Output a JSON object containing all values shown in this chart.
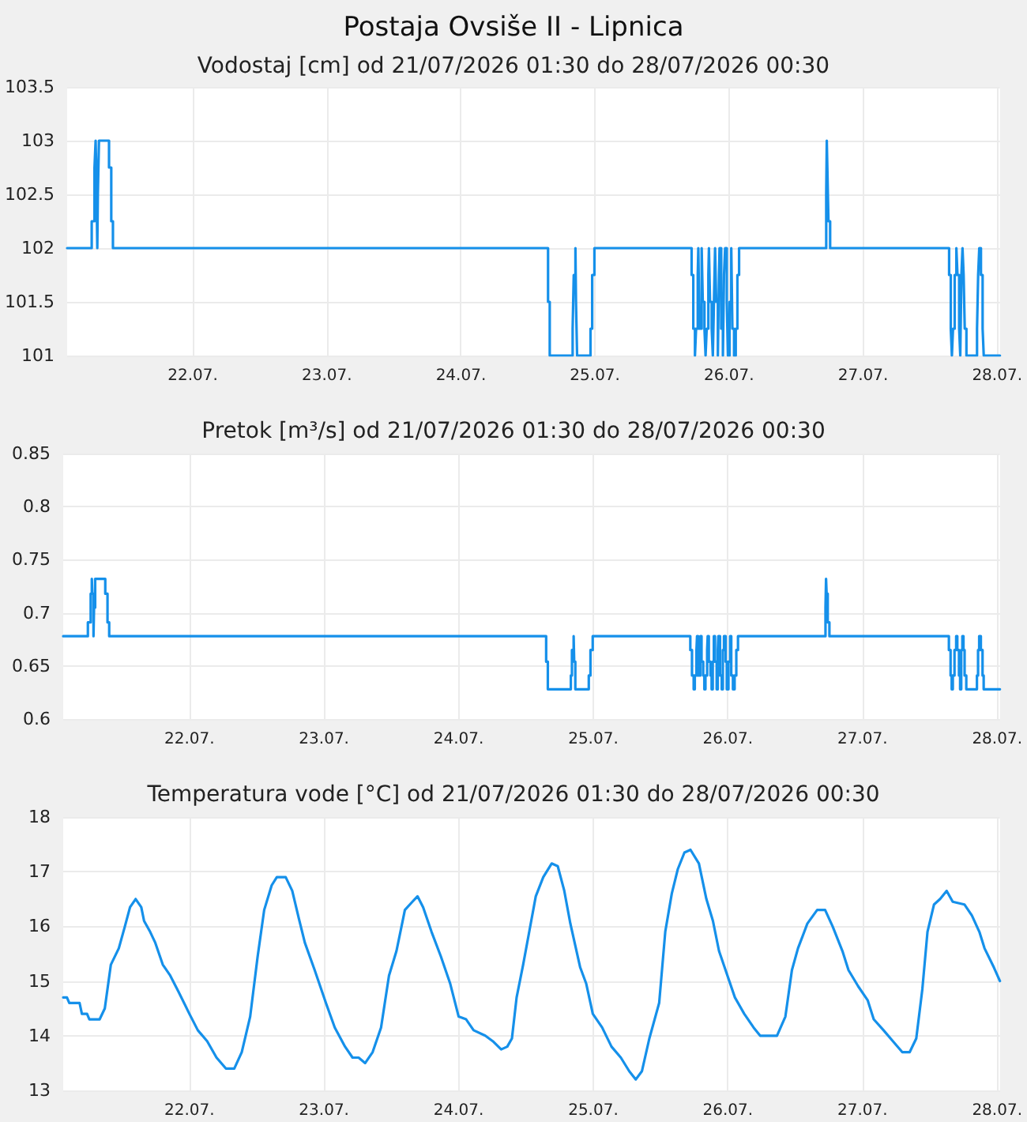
{
  "chart_data": [
    {
      "type": "step",
      "title": "Postaja Ovsiše II - Lipnica",
      "subtitle": "Vodostaj [cm] od 21/07/2026 01:30 do 28/07/2026 00:30",
      "x": [
        "2026-07-21T01:30",
        "2026-07-21T05:54",
        "2026-07-21T06:24",
        "2026-07-21T06:36",
        "2026-07-21T06:42",
        "2026-07-21T06:54",
        "2026-07-21T07:00",
        "2026-07-21T07:12",
        "2026-07-21T09:00",
        "2026-07-21T09:24",
        "2026-07-21T09:42",
        "2026-07-24T15:36",
        "2026-07-24T15:54",
        "2026-07-24T20:00",
        "2026-07-24T20:12",
        "2026-07-24T20:30",
        "2026-07-24T20:36",
        "2026-07-24T20:48",
        "2026-07-24T23:12",
        "2026-07-24T23:30",
        "2026-07-24T23:54",
        "2026-07-25T17:18",
        "2026-07-25T17:36",
        "2026-07-25T17:54",
        "2026-07-25T18:06",
        "2026-07-25T18:24",
        "2026-07-25T18:30",
        "2026-07-25T18:42",
        "2026-07-25T19:06",
        "2026-07-25T19:18",
        "2026-07-25T19:36",
        "2026-07-25T19:48",
        "2026-07-25T20:00",
        "2026-07-25T20:18",
        "2026-07-25T20:24",
        "2026-07-25T20:36",
        "2026-07-25T20:54",
        "2026-07-25T21:06",
        "2026-07-25T21:18",
        "2026-07-25T21:30",
        "2026-07-25T21:42",
        "2026-07-25T22:00",
        "2026-07-25T22:12",
        "2026-07-25T22:18",
        "2026-07-25T22:36",
        "2026-07-25T22:54",
        "2026-07-25T23:06",
        "2026-07-25T23:18",
        "2026-07-25T23:36",
        "2026-07-25T23:48",
        "2026-07-26T00:06",
        "2026-07-26T00:24",
        "2026-07-26T00:36",
        "2026-07-26T00:54",
        "2026-07-26T01:12",
        "2026-07-26T01:30",
        "2026-07-26T01:48",
        "2026-07-26T17:24",
        "2026-07-26T17:30",
        "2026-07-26T17:36",
        "2026-07-26T17:48",
        "2026-07-26T18:06",
        "2026-07-27T15:24",
        "2026-07-27T15:42",
        "2026-07-27T15:54",
        "2026-07-27T16:06",
        "2026-07-27T16:24",
        "2026-07-27T16:42",
        "2026-07-27T16:54",
        "2026-07-27T17:12",
        "2026-07-27T17:24",
        "2026-07-27T17:36",
        "2026-07-27T17:48",
        "2026-07-27T18:00",
        "2026-07-27T18:12",
        "2026-07-27T18:30",
        "2026-07-27T20:24",
        "2026-07-27T20:36",
        "2026-07-27T20:48",
        "2026-07-27T21:06",
        "2026-07-27T21:24",
        "2026-07-27T21:36",
        "2026-07-28T00:30"
      ],
      "series": [
        {
          "color": "#1590ea",
          "values": [
            102,
            102.25,
            102.75,
            103,
            102.75,
            102,
            102.5,
            103,
            102.75,
            102.25,
            102,
            101.5,
            101,
            101.25,
            101.75,
            102,
            101.5,
            101,
            101.25,
            101.75,
            102,
            101.75,
            101.25,
            101,
            101.25,
            101.75,
            102,
            101.25,
            102,
            101.5,
            101.25,
            101,
            101.25,
            101.75,
            102,
            101.5,
            101.25,
            101,
            101.5,
            102,
            101.5,
            101,
            101.75,
            102,
            101.25,
            101,
            101.75,
            102,
            101.5,
            101,
            101.5,
            102,
            101.25,
            101,
            101.25,
            101.75,
            102,
            102.5,
            103,
            102.75,
            102.25,
            102,
            101.75,
            101.25,
            101,
            101.25,
            101.75,
            102,
            101.75,
            101.25,
            101,
            101.75,
            102,
            101.75,
            101.25,
            101,
            101.25,
            101.75,
            102,
            101.75,
            101.25,
            101,
            101
          ]
        }
      ],
      "xlim": [
        "2026-07-21T01:30",
        "2026-07-28T00:30"
      ],
      "xticks": [
        {
          "value": "2026-07-22T00:00",
          "label": "22.07."
        },
        {
          "value": "2026-07-23T00:00",
          "label": "23.07."
        },
        {
          "value": "2026-07-24T00:00",
          "label": "24.07."
        },
        {
          "value": "2026-07-25T00:00",
          "label": "25.07."
        },
        {
          "value": "2026-07-26T00:00",
          "label": "26.07."
        },
        {
          "value": "2026-07-27T00:00",
          "label": "27.07."
        },
        {
          "value": "2026-07-28T00:00",
          "label": "28.07."
        }
      ],
      "ylim": [
        101,
        103.5
      ],
      "yticks": [
        101,
        101.5,
        102,
        102.5,
        103,
        103.5
      ],
      "grid": true
    },
    {
      "type": "step",
      "title": "Pretok [m³/s] od 21/07/2026 01:30 do 28/07/2026 00:30",
      "x": [
        "2026-07-21T01:30",
        "2026-07-21T05:54",
        "2026-07-21T06:24",
        "2026-07-21T06:36",
        "2026-07-21T06:42",
        "2026-07-21T06:54",
        "2026-07-21T07:00",
        "2026-07-21T07:12",
        "2026-07-21T09:00",
        "2026-07-21T09:24",
        "2026-07-21T09:42",
        "2026-07-24T15:36",
        "2026-07-24T15:54",
        "2026-07-24T20:00",
        "2026-07-24T20:12",
        "2026-07-24T20:30",
        "2026-07-24T20:36",
        "2026-07-24T20:48",
        "2026-07-24T23:12",
        "2026-07-24T23:30",
        "2026-07-24T23:54",
        "2026-07-25T17:18",
        "2026-07-25T17:36",
        "2026-07-25T17:54",
        "2026-07-25T18:06",
        "2026-07-25T18:24",
        "2026-07-25T18:30",
        "2026-07-25T18:42",
        "2026-07-25T19:06",
        "2026-07-25T19:18",
        "2026-07-25T19:36",
        "2026-07-25T19:48",
        "2026-07-25T20:00",
        "2026-07-25T20:18",
        "2026-07-25T20:24",
        "2026-07-25T20:36",
        "2026-07-25T20:54",
        "2026-07-25T21:06",
        "2026-07-25T21:18",
        "2026-07-25T21:30",
        "2026-07-25T21:42",
        "2026-07-25T22:00",
        "2026-07-25T22:12",
        "2026-07-25T22:18",
        "2026-07-25T22:36",
        "2026-07-25T22:54",
        "2026-07-25T23:06",
        "2026-07-25T23:18",
        "2026-07-25T23:36",
        "2026-07-25T23:48",
        "2026-07-26T00:06",
        "2026-07-26T00:24",
        "2026-07-26T00:36",
        "2026-07-26T00:54",
        "2026-07-26T01:12",
        "2026-07-26T01:30",
        "2026-07-26T01:48",
        "2026-07-26T17:24",
        "2026-07-26T17:30",
        "2026-07-26T17:36",
        "2026-07-26T17:48",
        "2026-07-26T18:06",
        "2026-07-27T15:24",
        "2026-07-27T15:42",
        "2026-07-27T15:54",
        "2026-07-27T16:06",
        "2026-07-27T16:24",
        "2026-07-27T16:42",
        "2026-07-27T16:54",
        "2026-07-27T17:12",
        "2026-07-27T17:24",
        "2026-07-27T17:36",
        "2026-07-27T17:48",
        "2026-07-27T18:00",
        "2026-07-27T18:12",
        "2026-07-27T18:30",
        "2026-07-27T20:24",
        "2026-07-27T20:36",
        "2026-07-27T20:48",
        "2026-07-27T21:06",
        "2026-07-27T21:24",
        "2026-07-27T21:36",
        "2026-07-28T00:30"
      ],
      "series": [
        {
          "color": "#1590ea",
          "values": [
            0.678,
            0.691,
            0.718,
            0.732,
            0.718,
            0.678,
            0.705,
            0.732,
            0.718,
            0.691,
            0.678,
            0.654,
            0.628,
            0.641,
            0.665,
            0.678,
            0.654,
            0.628,
            0.641,
            0.665,
            0.678,
            0.665,
            0.641,
            0.628,
            0.641,
            0.665,
            0.678,
            0.641,
            0.678,
            0.654,
            0.641,
            0.628,
            0.641,
            0.665,
            0.678,
            0.654,
            0.641,
            0.628,
            0.654,
            0.678,
            0.654,
            0.628,
            0.665,
            0.678,
            0.641,
            0.628,
            0.665,
            0.678,
            0.654,
            0.628,
            0.654,
            0.678,
            0.641,
            0.628,
            0.641,
            0.665,
            0.678,
            0.705,
            0.732,
            0.718,
            0.691,
            0.678,
            0.665,
            0.641,
            0.628,
            0.641,
            0.665,
            0.678,
            0.665,
            0.641,
            0.628,
            0.665,
            0.678,
            0.665,
            0.641,
            0.628,
            0.641,
            0.665,
            0.678,
            0.665,
            0.641,
            0.628,
            0.628
          ]
        }
      ],
      "xlim": [
        "2026-07-21T01:30",
        "2026-07-28T00:30"
      ],
      "xticks": [
        {
          "value": "2026-07-22T00:00",
          "label": "22.07."
        },
        {
          "value": "2026-07-23T00:00",
          "label": "23.07."
        },
        {
          "value": "2026-07-24T00:00",
          "label": "24.07."
        },
        {
          "value": "2026-07-25T00:00",
          "label": "25.07."
        },
        {
          "value": "2026-07-26T00:00",
          "label": "26.07."
        },
        {
          "value": "2026-07-27T00:00",
          "label": "27.07."
        },
        {
          "value": "2026-07-28T00:00",
          "label": "28.07."
        }
      ],
      "ylim": [
        0.6,
        0.85
      ],
      "yticks": [
        0.6,
        0.65,
        0.7,
        0.75,
        0.8,
        0.85
      ],
      "grid": true
    },
    {
      "type": "line",
      "title": "Temperatura vode [°C] od 21/07/2026 01:30 do 28/07/2026 00:30",
      "x": [
        "2026-07-21T01:30",
        "2026-07-21T02:10",
        "2026-07-21T02:35",
        "2026-07-21T04:25",
        "2026-07-21T04:50",
        "2026-07-21T05:45",
        "2026-07-21T06:10",
        "2026-07-21T08:00",
        "2026-07-21T08:55",
        "2026-07-21T10:00",
        "2026-07-21T11:25",
        "2026-07-21T12:30",
        "2026-07-21T13:25",
        "2026-07-21T14:25",
        "2026-07-21T15:25",
        "2026-07-21T15:55",
        "2026-07-21T17:00",
        "2026-07-21T17:55",
        "2026-07-21T19:15",
        "2026-07-21T20:35",
        "2026-07-21T22:05",
        "2026-07-22T00:00",
        "2026-07-22T01:30",
        "2026-07-22T03:10",
        "2026-07-22T04:50",
        "2026-07-22T06:30",
        "2026-07-22T08:00",
        "2026-07-22T09:20",
        "2026-07-22T10:50",
        "2026-07-22T12:10",
        "2026-07-22T13:20",
        "2026-07-22T14:40",
        "2026-07-22T15:35",
        "2026-07-22T17:10",
        "2026-07-22T18:20",
        "2026-07-22T19:30",
        "2026-07-22T20:35",
        "2026-07-22T22:20",
        "2026-07-23T00:20",
        "2026-07-23T01:55",
        "2026-07-23T03:45",
        "2026-07-23T05:05",
        "2026-07-23T06:10",
        "2026-07-23T07:20",
        "2026-07-23T08:40",
        "2026-07-23T10:10",
        "2026-07-23T11:35",
        "2026-07-23T12:55",
        "2026-07-23T14:25",
        "2026-07-23T15:45",
        "2026-07-23T16:40",
        "2026-07-23T17:40",
        "2026-07-23T19:10",
        "2026-07-23T20:50",
        "2026-07-23T22:30",
        "2026-07-24T00:00",
        "2026-07-24T01:20",
        "2026-07-24T02:40",
        "2026-07-24T04:45",
        "2026-07-24T06:05",
        "2026-07-24T07:35",
        "2026-07-24T08:40",
        "2026-07-24T09:30",
        "2026-07-24T10:20",
        "2026-07-24T11:30",
        "2026-07-24T12:35",
        "2026-07-24T13:45",
        "2026-07-24T15:05",
        "2026-07-24T16:35",
        "2026-07-24T17:40",
        "2026-07-24T18:50",
        "2026-07-24T19:55",
        "2026-07-24T21:40",
        "2026-07-24T22:45",
        "2026-07-24T23:55",
        "2026-07-25T01:35",
        "2026-07-25T03:15",
        "2026-07-25T04:55",
        "2026-07-25T06:25",
        "2026-07-25T07:35",
        "2026-07-25T08:40",
        "2026-07-25T10:00",
        "2026-07-25T11:45",
        "2026-07-25T12:50",
        "2026-07-25T14:00",
        "2026-07-25T15:05",
        "2026-07-25T16:15",
        "2026-07-25T17:20",
        "2026-07-25T18:50",
        "2026-07-25T20:10",
        "2026-07-25T21:20",
        "2026-07-25T22:25",
        "2026-07-25T23:35",
        "2026-07-26T01:15",
        "2026-07-26T02:55",
        "2026-07-26T04:35",
        "2026-07-26T05:45",
        "2026-07-26T08:45",
        "2026-07-26T10:15",
        "2026-07-26T11:25",
        "2026-07-26T12:30",
        "2026-07-26T14:10",
        "2026-07-26T15:55",
        "2026-07-26T17:20",
        "2026-07-26T18:40",
        "2026-07-26T20:25",
        "2026-07-26T21:30",
        "2026-07-26T23:15",
        "2026-07-27T00:55",
        "2026-07-27T02:00",
        "2026-07-27T03:45",
        "2026-07-27T05:25",
        "2026-07-27T07:05",
        "2026-07-27T08:25",
        "2026-07-27T09:35",
        "2026-07-27T10:40",
        "2026-07-27T11:35",
        "2026-07-27T12:45",
        "2026-07-27T13:50",
        "2026-07-27T15:00",
        "2026-07-27T16:05",
        "2026-07-27T18:10",
        "2026-07-27T19:30",
        "2026-07-27T20:50",
        "2026-07-27T21:45",
        "2026-07-27T23:25",
        "2026-07-28T00:30"
      ],
      "series": [
        {
          "color": "#1590ea",
          "values": [
            14.7,
            14.7,
            14.6,
            14.6,
            14.4,
            14.4,
            14.3,
            14.3,
            14.5,
            15.3,
            15.6,
            16.0,
            16.35,
            16.5,
            16.35,
            16.1,
            15.9,
            15.7,
            15.3,
            15.1,
            14.8,
            14.4,
            14.1,
            13.9,
            13.6,
            13.4,
            13.4,
            13.7,
            14.35,
            15.45,
            16.3,
            16.75,
            16.9,
            16.9,
            16.65,
            16.15,
            15.7,
            15.2,
            14.6,
            14.15,
            13.8,
            13.6,
            13.6,
            13.5,
            13.7,
            14.15,
            15.1,
            15.55,
            16.3,
            16.45,
            16.55,
            16.35,
            15.9,
            15.45,
            14.95,
            14.35,
            14.3,
            14.1,
            14.0,
            13.9,
            13.75,
            13.8,
            13.95,
            14.7,
            15.3,
            15.9,
            16.55,
            16.9,
            17.15,
            17.1,
            16.65,
            16.05,
            15.25,
            14.95,
            14.4,
            14.15,
            13.8,
            13.6,
            13.35,
            13.2,
            13.35,
            13.95,
            14.6,
            15.9,
            16.6,
            17.05,
            17.35,
            17.4,
            17.15,
            16.5,
            16.1,
            15.55,
            15.2,
            14.7,
            14.4,
            14.15,
            14.0,
            14.0,
            14.35,
            15.2,
            15.6,
            16.05,
            16.3,
            16.3,
            16.0,
            15.55,
            15.2,
            14.9,
            14.65,
            14.3,
            14.1,
            13.9,
            13.7,
            13.7,
            13.95,
            14.85,
            15.9,
            16.4,
            16.5,
            16.65,
            16.45,
            16.4,
            16.2,
            15.9,
            15.6,
            15.25,
            15.0
          ]
        }
      ],
      "xlim": [
        "2026-07-21T01:30",
        "2026-07-28T00:30"
      ],
      "xticks": [
        {
          "value": "2026-07-22T00:00",
          "label": "22.07."
        },
        {
          "value": "2026-07-23T00:00",
          "label": "23.07."
        },
        {
          "value": "2026-07-24T00:00",
          "label": "24.07."
        },
        {
          "value": "2026-07-25T00:00",
          "label": "25.07."
        },
        {
          "value": "2026-07-26T00:00",
          "label": "26.07."
        },
        {
          "value": "2026-07-27T00:00",
          "label": "27.07."
        },
        {
          "value": "2026-07-28T00:00",
          "label": "28.07."
        }
      ],
      "ylim": [
        13,
        18
      ],
      "yticks": [
        13,
        14,
        15,
        16,
        17,
        18
      ],
      "grid": true
    }
  ]
}
